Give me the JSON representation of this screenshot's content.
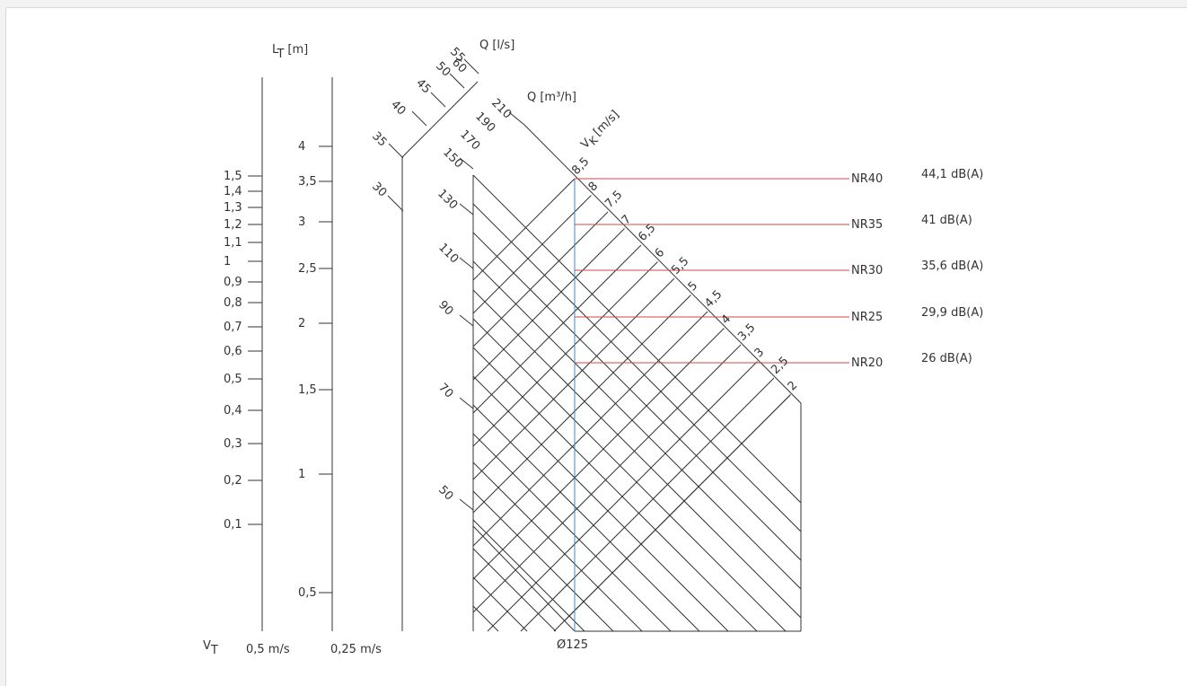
{
  "colors": {
    "grid": "#333333",
    "nr_line": "#d04848",
    "duct_line": "#3a8fb8",
    "background": "#ffffff"
  },
  "chart_data": {
    "type": "nomogram",
    "axes": {
      "lt_label": "L",
      "lt_sub": "T",
      "lt_unit": "[m]",
      "vt_label": "V",
      "vt_sub": "T",
      "vt_05_label": "0,5 m/s",
      "vt_025_label": "0,25 m/s",
      "q_ls_label": "Q [l/s]",
      "q_m3h_label": "Q [m³/h]",
      "vk_label": "V",
      "vk_sub": "K",
      "vk_unit": "[m/s]",
      "duct_label": "Ø125"
    },
    "lt_05_scale": [
      "1,5",
      "1,4",
      "1,3",
      "1,2",
      "1,1",
      "1",
      "0,9",
      "0,8",
      "0,7",
      "0,6",
      "0,5",
      "0,4",
      "0,3",
      "0,2",
      "0,1"
    ],
    "lt_025_scale": [
      "4",
      "3,5",
      "3",
      "2,5",
      "2",
      "1,5",
      "1",
      "0,5"
    ],
    "q_ls_scale": [
      "30",
      "35",
      "40",
      "45",
      "50",
      "55",
      "60"
    ],
    "q_m3h_scale": [
      "50",
      "70",
      "90",
      "110",
      "130",
      "150",
      "170",
      "190",
      "210"
    ],
    "vk_scale": [
      "8,5",
      "8",
      "7,5",
      "7",
      "6,5",
      "6",
      "5,5",
      "5",
      "4,5",
      "4",
      "3,5",
      "3",
      "2,5",
      "2"
    ],
    "noise_levels": [
      {
        "nr": "NR40",
        "dba": "44,1 dB(A)"
      },
      {
        "nr": "NR35",
        "dba": "41 dB(A)"
      },
      {
        "nr": "NR30",
        "dba": "35,6 dB(A)"
      },
      {
        "nr": "NR25",
        "dba": "29,9 dB(A)"
      },
      {
        "nr": "NR20",
        "dba": "26 dB(A)"
      }
    ]
  }
}
